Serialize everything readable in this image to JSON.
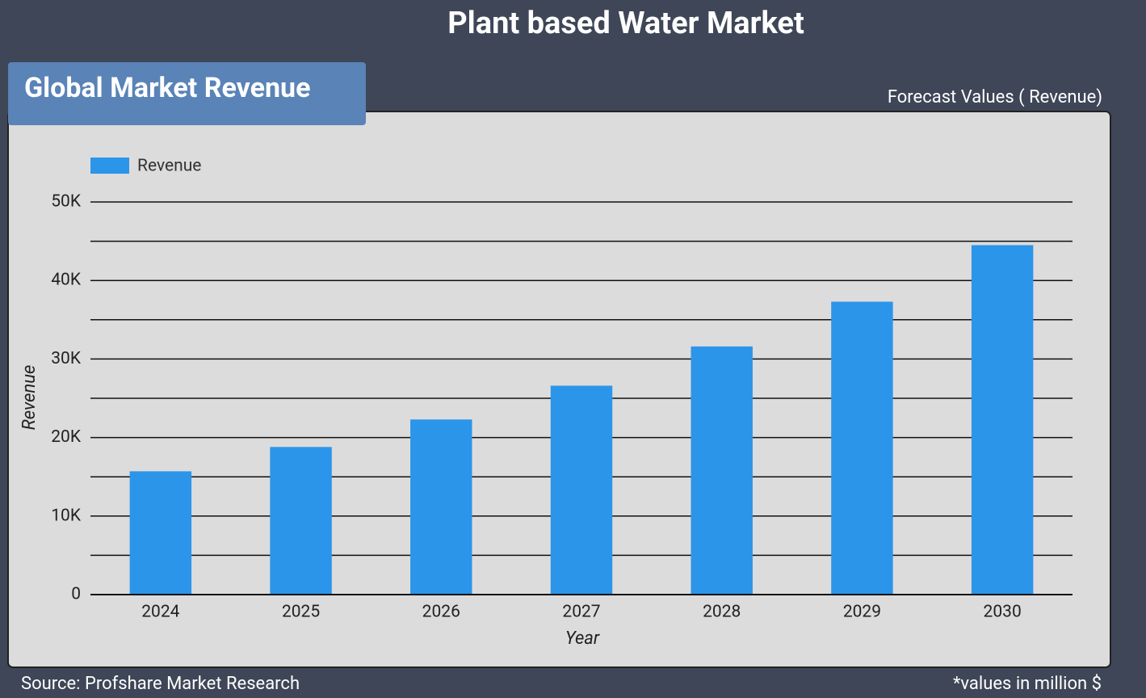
{
  "header": {
    "title": "Plant based Water Market",
    "tab": "Global Market Revenue",
    "subtitle": "Forecast Values ( Revenue)"
  },
  "footer": {
    "source": "Source: Profshare Market Research",
    "note": "*values in million $"
  },
  "chart_data": {
    "type": "bar",
    "x_label": "Year",
    "y_label": "Revenue",
    "categories": [
      "2024",
      "2025",
      "2026",
      "2027",
      "2028",
      "2029",
      "2030"
    ],
    "series": [
      {
        "name": "Revenue",
        "color": "#2b95ea",
        "values": [
          15700,
          18800,
          22300,
          26600,
          31600,
          37300,
          44500
        ]
      }
    ],
    "ylim": [
      0,
      50000
    ],
    "yticks": [
      0,
      {
        "value": 10000,
        "label": "10K"
      },
      {
        "value": 20000,
        "label": "20K"
      },
      {
        "value": 30000,
        "label": "30K"
      },
      {
        "value": 40000,
        "label": "40K"
      },
      {
        "value": 50000,
        "label": "50K"
      }
    ],
    "grid_lines": [
      0,
      5000,
      10000,
      15000,
      20000,
      25000,
      30000,
      35000,
      40000,
      45000,
      50000
    ],
    "grid": true,
    "legend": "top-left"
  }
}
